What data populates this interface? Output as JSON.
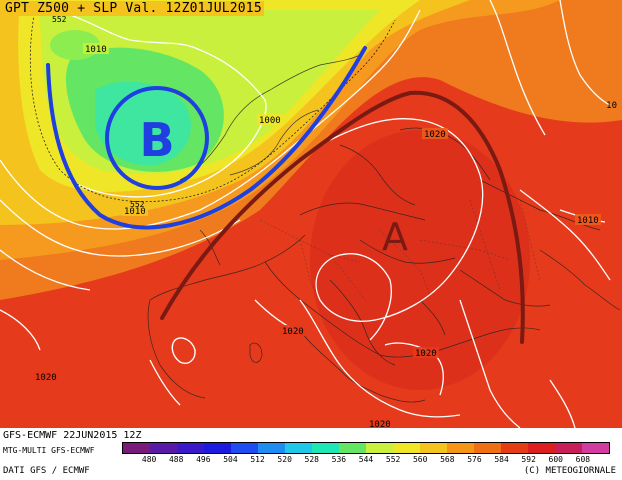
{
  "header": {
    "title": "GPT Z500 + SLP Val. 12Z01JUL2015"
  },
  "map": {
    "low_symbol": "B",
    "high_symbol": "A",
    "isobar_labels": [
      "1010",
      "1000",
      "1010",
      "1020",
      "1010",
      "1020",
      "1020",
      "1020",
      "1020"
    ],
    "height_labels": [
      "552",
      "552"
    ],
    "low_color": "#1f3fe0",
    "high_color": "#7a1a12",
    "isobar_color": "#ffffff"
  },
  "footer": {
    "model_run": "GFS-ECMWF 22JUN2015 12Z",
    "multi": "MTG-MULTI GFS-ECMWF",
    "data_source": "DATI GFS / ECMWF",
    "copyright": "(C) METEOGIORNALE"
  },
  "legend": {
    "values": [
      "480",
      "488",
      "496",
      "504",
      "512",
      "520",
      "528",
      "536",
      "544",
      "552",
      "560",
      "568",
      "576",
      "584",
      "592",
      "600",
      "608"
    ],
    "colors": [
      "#7a1a7a",
      "#5a1aa8",
      "#3a1ac8",
      "#1e1ae0",
      "#1e4cf0",
      "#1e8cf0",
      "#1ec8e6",
      "#1ee6b4",
      "#64e664",
      "#c8f03c",
      "#f0e628",
      "#f5c31e",
      "#f59619",
      "#f06e14",
      "#e63c14",
      "#dc1e1e",
      "#c81e5a",
      "#d23ca0"
    ]
  }
}
